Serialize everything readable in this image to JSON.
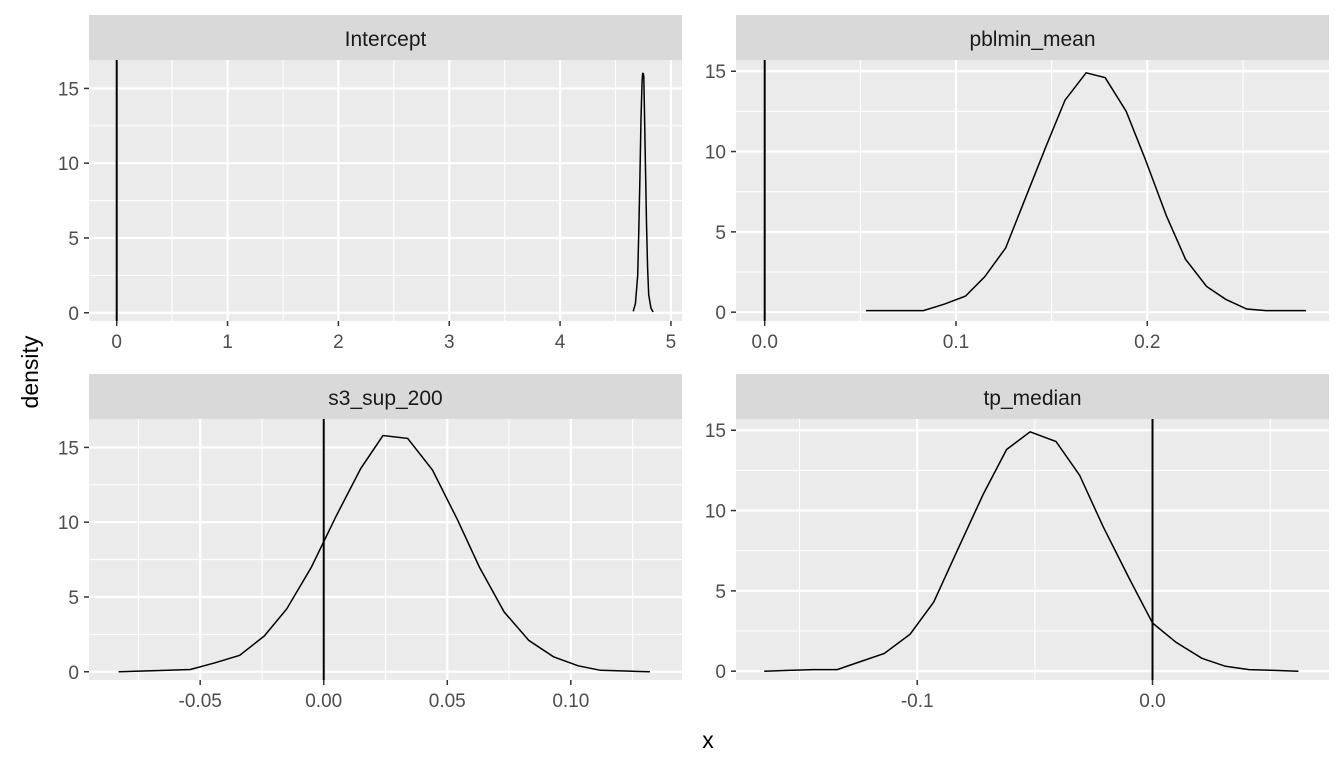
{
  "chart_data": {
    "type": "line",
    "xlabel": "x",
    "ylabel": "density",
    "panels": [
      {
        "title": "Intercept",
        "xlim": [
          -0.25,
          5.1
        ],
        "ylim": [
          -0.55,
          16.9
        ],
        "x_ticks": [
          0,
          1,
          2,
          3,
          4,
          5
        ],
        "x_tick_labels": [
          "0",
          "1",
          "2",
          "3",
          "4",
          "5"
        ],
        "y_ticks": [
          0,
          5,
          10,
          15
        ],
        "y_tick_labels": [
          "0",
          "5",
          "10",
          "15"
        ],
        "vline": 0,
        "series": [
          {
            "x": [
              4.66,
              4.68,
              4.7,
              4.71,
              4.72,
              4.73,
              4.74,
              4.745,
              4.75,
              4.755,
              4.76,
              4.77,
              4.78,
              4.79,
              4.8,
              4.82,
              4.84
            ],
            "y": [
              0.1,
              0.6,
              2.5,
              5.5,
              9.0,
              13.0,
              15.5,
              16.0,
              16.0,
              15.8,
              14.0,
              10.0,
              6.0,
              3.0,
              1.2,
              0.3,
              0.05
            ]
          }
        ]
      },
      {
        "title": "pblmin_mean",
        "xlim": [
          -0.015,
          0.295
        ],
        "ylim": [
          -0.55,
          15.7
        ],
        "x_ticks": [
          0.0,
          0.1,
          0.2
        ],
        "x_tick_labels": [
          "0.0",
          "0.1",
          "0.2"
        ],
        "y_ticks": [
          0,
          5,
          10,
          15
        ],
        "y_tick_labels": [
          "0",
          "5",
          "10",
          "15"
        ],
        "vline": 0,
        "series": [
          {
            "x": [
              0.053,
              0.063,
              0.073,
              0.083,
              0.094,
              0.105,
              0.115,
              0.126,
              0.136,
              0.147,
              0.157,
              0.168,
              0.178,
              0.189,
              0.199,
              0.21,
              0.22,
              0.231,
              0.241,
              0.252,
              0.262,
              0.273,
              0.283
            ],
            "y": [
              0.1,
              0.1,
              0.1,
              0.1,
              0.5,
              1.0,
              2.2,
              4.0,
              7.0,
              10.3,
              13.2,
              14.9,
              14.6,
              12.5,
              9.5,
              6.0,
              3.3,
              1.6,
              0.8,
              0.2,
              0.1,
              0.1,
              0.1
            ]
          }
        ]
      },
      {
        "title": "s3_sup_200",
        "xlim": [
          -0.095,
          0.145
        ],
        "ylim": [
          -0.55,
          16.9
        ],
        "x_ticks": [
          -0.05,
          0.0,
          0.05,
          0.1
        ],
        "x_tick_labels": [
          "-0.05",
          "0.00",
          "0.05",
          "0.10"
        ],
        "y_ticks": [
          0,
          5,
          10,
          15
        ],
        "y_tick_labels": [
          "0",
          "5",
          "10",
          "15"
        ],
        "vline": 0,
        "series": [
          {
            "x": [
              -0.083,
              -0.073,
              -0.063,
              -0.054,
              -0.044,
              -0.034,
              -0.024,
              -0.015,
              -0.005,
              0.005,
              0.015,
              0.024,
              0.034,
              0.044,
              0.054,
              0.063,
              0.073,
              0.083,
              0.093,
              0.103,
              0.112,
              0.122,
              0.132
            ],
            "y": [
              0.0,
              0.05,
              0.1,
              0.15,
              0.6,
              1.1,
              2.4,
              4.2,
              7.0,
              10.4,
              13.6,
              15.8,
              15.6,
              13.5,
              10.2,
              7.0,
              4.0,
              2.1,
              1.0,
              0.4,
              0.1,
              0.05,
              0.0
            ]
          }
        ]
      },
      {
        "title": "tp_median",
        "xlim": [
          -0.177,
          0.075
        ],
        "ylim": [
          -0.55,
          15.7
        ],
        "x_ticks": [
          -0.1,
          0.0
        ],
        "x_tick_labels": [
          "-0.1",
          "0.0"
        ],
        "y_ticks": [
          0,
          5,
          10,
          15
        ],
        "y_tick_labels": [
          "0",
          "5",
          "10",
          "15"
        ],
        "vline": 0,
        "series": [
          {
            "x": [
              -0.165,
              -0.155,
              -0.144,
              -0.134,
              -0.124,
              -0.114,
              -0.103,
              -0.093,
              -0.083,
              -0.072,
              -0.062,
              -0.052,
              -0.041,
              -0.031,
              -0.021,
              -0.01,
              0.0,
              0.01,
              0.021,
              0.031,
              0.041,
              0.052,
              0.062
            ],
            "y": [
              0.0,
              0.05,
              0.1,
              0.1,
              0.6,
              1.1,
              2.3,
              4.3,
              7.5,
              11.0,
              13.8,
              14.9,
              14.3,
              12.2,
              9.0,
              5.8,
              3.0,
              1.8,
              0.8,
              0.3,
              0.1,
              0.05,
              0.0
            ]
          }
        ]
      }
    ]
  }
}
